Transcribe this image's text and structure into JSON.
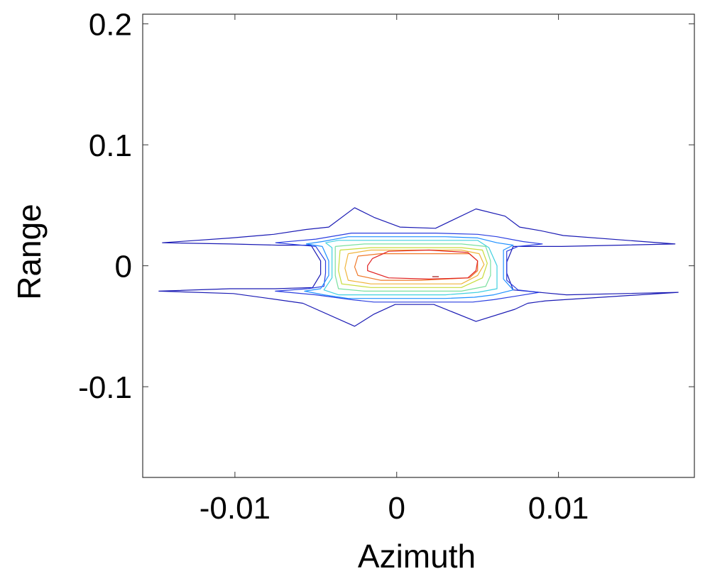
{
  "chart_data": {
    "type": "contour",
    "title": "",
    "xlabel": "Azimuth",
    "ylabel": "Range",
    "xlim": [
      -0.0157,
      0.0184
    ],
    "ylim": [
      -0.175,
      0.208
    ],
    "xticks": [
      -0.01,
      0,
      0.01
    ],
    "xtick_labels": [
      "-0.01",
      "0",
      "0.01"
    ],
    "yticks": [
      -0.1,
      0,
      0.1,
      0.2
    ],
    "ytick_labels": [
      "-0.1",
      "0",
      "0.1",
      "0.2"
    ],
    "grid": false,
    "box": true,
    "contours": [
      {
        "level": 1,
        "color": "#1a1ab4",
        "points": [
          [
            -0.0145,
            0.019
          ],
          [
            -0.0102,
            0.023
          ],
          [
            -0.0076,
            0.026
          ],
          [
            -0.0056,
            0.03
          ],
          [
            -0.0042,
            0.032
          ],
          [
            -0.0026,
            0.048
          ],
          [
            -0.0014,
            0.04
          ],
          [
            0.0002,
            0.032
          ],
          [
            0.0024,
            0.031
          ],
          [
            0.0049,
            0.047
          ],
          [
            0.0067,
            0.041
          ],
          [
            0.0076,
            0.032
          ],
          [
            0.0089,
            0.029
          ],
          [
            0.0103,
            0.025
          ],
          [
            0.0172,
            0.018
          ],
          [
            0.0102,
            0.016
          ],
          [
            0.0072,
            0.016
          ],
          [
            0.0068,
            0.003
          ],
          [
            0.0068,
            -0.006
          ],
          [
            0.0072,
            -0.02
          ],
          [
            0.0105,
            -0.024
          ],
          [
            0.0174,
            -0.022
          ],
          [
            0.0092,
            -0.029
          ],
          [
            0.0081,
            -0.031
          ],
          [
            0.0073,
            -0.036
          ],
          [
            0.0049,
            -0.046
          ],
          [
            0.0023,
            -0.032
          ],
          [
            -0.0001,
            -0.032
          ],
          [
            -0.0014,
            -0.04
          ],
          [
            -0.0026,
            -0.05
          ],
          [
            -0.0058,
            -0.031
          ],
          [
            -0.0079,
            -0.027
          ],
          [
            -0.0101,
            -0.023
          ],
          [
            -0.0147,
            -0.021
          ],
          [
            -0.0103,
            -0.019
          ],
          [
            -0.0075,
            -0.019
          ],
          [
            -0.0052,
            -0.018
          ],
          [
            -0.0047,
            -0.007
          ],
          [
            -0.0047,
            0.004
          ],
          [
            -0.0053,
            0.017
          ],
          [
            -0.0073,
            0.017
          ],
          [
            -0.0103,
            0.018
          ],
          [
            -0.0145,
            0.019
          ]
        ]
      },
      {
        "level": 2,
        "color": "#2a3ee0",
        "points": [
          [
            -0.0075,
            0.019
          ],
          [
            -0.005,
            0.022
          ],
          [
            -0.0028,
            0.027
          ],
          [
            -0.0014,
            0.027
          ],
          [
            0.0002,
            0.027
          ],
          [
            0.0024,
            0.027
          ],
          [
            0.005,
            0.026
          ],
          [
            0.0062,
            0.024
          ],
          [
            0.0078,
            0.02
          ],
          [
            0.009,
            0.018
          ],
          [
            0.0075,
            0.016
          ],
          [
            0.0068,
            0.012
          ],
          [
            0.0068,
            0.0
          ],
          [
            0.0068,
            -0.012
          ],
          [
            0.0075,
            -0.02
          ],
          [
            0.0088,
            -0.022
          ],
          [
            0.0074,
            -0.025
          ],
          [
            0.006,
            -0.028
          ],
          [
            0.0047,
            -0.03
          ],
          [
            0.0024,
            -0.03
          ],
          [
            0.0002,
            -0.03
          ],
          [
            -0.0014,
            -0.03
          ],
          [
            -0.0028,
            -0.028
          ],
          [
            -0.005,
            -0.024
          ],
          [
            -0.0075,
            -0.021
          ],
          [
            -0.0055,
            -0.019
          ],
          [
            -0.0045,
            -0.017
          ],
          [
            -0.0044,
            -0.006
          ],
          [
            -0.0044,
            0.004
          ],
          [
            -0.005,
            0.016
          ],
          [
            -0.0075,
            0.019
          ]
        ]
      },
      {
        "level": 3,
        "color": "#1e90ff",
        "points": [
          [
            -0.0056,
            0.018
          ],
          [
            -0.0046,
            0.02
          ],
          [
            -0.003,
            0.024
          ],
          [
            -0.001,
            0.024
          ],
          [
            0.001,
            0.024
          ],
          [
            0.003,
            0.024
          ],
          [
            0.005,
            0.023
          ],
          [
            0.0062,
            0.019
          ],
          [
            0.0072,
            0.017
          ],
          [
            0.0066,
            0.013
          ],
          [
            0.0066,
            0.0
          ],
          [
            0.0066,
            -0.011
          ],
          [
            0.0072,
            -0.02
          ],
          [
            0.006,
            -0.024
          ],
          [
            0.0048,
            -0.026
          ],
          [
            0.003,
            -0.027
          ],
          [
            0.001,
            -0.027
          ],
          [
            -0.001,
            -0.027
          ],
          [
            -0.003,
            -0.027
          ],
          [
            -0.0045,
            -0.024
          ],
          [
            -0.0057,
            -0.021
          ],
          [
            -0.0047,
            -0.019
          ],
          [
            -0.0042,
            -0.008
          ],
          [
            -0.0042,
            0.004
          ],
          [
            -0.0046,
            0.016
          ],
          [
            -0.0056,
            0.018
          ]
        ]
      },
      {
        "level": 4,
        "color": "#40d0e0",
        "points": [
          [
            -0.0044,
            0.019
          ],
          [
            -0.0036,
            0.021
          ],
          [
            -0.001,
            0.021
          ],
          [
            0.001,
            0.021
          ],
          [
            0.003,
            0.021
          ],
          [
            0.005,
            0.021
          ],
          [
            0.0057,
            0.015
          ],
          [
            0.0062,
            0.0
          ],
          [
            0.0062,
            -0.01
          ],
          [
            0.0062,
            -0.019
          ],
          [
            0.005,
            -0.022
          ],
          [
            0.003,
            -0.024
          ],
          [
            0.001,
            -0.024
          ],
          [
            -0.001,
            -0.024
          ],
          [
            -0.0036,
            -0.024
          ],
          [
            -0.0045,
            -0.02
          ],
          [
            -0.004,
            -0.01
          ],
          [
            -0.004,
            0.004
          ],
          [
            -0.004,
            0.015
          ],
          [
            -0.0044,
            0.019
          ]
        ]
      },
      {
        "level": 5,
        "color": "#7be0a0",
        "points": [
          [
            -0.0038,
            0.016
          ],
          [
            -0.002,
            0.018
          ],
          [
            0.001,
            0.018
          ],
          [
            0.004,
            0.018
          ],
          [
            0.0055,
            0.016
          ],
          [
            0.0058,
            0.004
          ],
          [
            0.0058,
            -0.008
          ],
          [
            0.0055,
            -0.017
          ],
          [
            0.004,
            -0.021
          ],
          [
            0.001,
            -0.021
          ],
          [
            -0.002,
            -0.021
          ],
          [
            -0.0036,
            -0.019
          ],
          [
            -0.0038,
            -0.008
          ],
          [
            -0.0038,
            0.004
          ],
          [
            -0.0038,
            0.016
          ]
        ]
      },
      {
        "level": 6,
        "color": "#c8dc3c",
        "points": [
          [
            -0.0035,
            0.013
          ],
          [
            -0.0016,
            0.015
          ],
          [
            0.001,
            0.015
          ],
          [
            0.004,
            0.015
          ],
          [
            0.0053,
            0.013
          ],
          [
            0.0056,
            0.002
          ],
          [
            0.0053,
            -0.01
          ],
          [
            0.004,
            -0.018
          ],
          [
            0.001,
            -0.018
          ],
          [
            -0.0016,
            -0.018
          ],
          [
            -0.0034,
            -0.015
          ],
          [
            -0.0036,
            -0.004
          ],
          [
            -0.0035,
            0.013
          ]
        ]
      },
      {
        "level": 7,
        "color": "#f0b43c",
        "points": [
          [
            -0.003,
            0.01
          ],
          [
            -0.0016,
            0.013
          ],
          [
            0.001,
            0.013
          ],
          [
            0.004,
            0.013
          ],
          [
            0.0051,
            0.01
          ],
          [
            0.0054,
            0.001
          ],
          [
            0.005,
            -0.008
          ],
          [
            0.004,
            -0.015
          ],
          [
            0.001,
            -0.015
          ],
          [
            -0.0016,
            -0.015
          ],
          [
            -0.003,
            -0.012
          ],
          [
            -0.0032,
            -0.002
          ],
          [
            -0.003,
            0.01
          ]
        ]
      },
      {
        "level": 8,
        "color": "#f07828",
        "points": [
          [
            -0.0024,
            0.008
          ],
          [
            -0.001,
            0.01
          ],
          [
            0.0015,
            0.01
          ],
          [
            0.0045,
            0.01
          ],
          [
            0.005,
            0.004
          ],
          [
            0.005,
            -0.004
          ],
          [
            0.0045,
            -0.01
          ],
          [
            0.0015,
            -0.012
          ],
          [
            -0.001,
            -0.012
          ],
          [
            -0.0024,
            -0.008
          ],
          [
            -0.0026,
            -0.001
          ],
          [
            -0.0024,
            0.008
          ]
        ]
      },
      {
        "level": 9,
        "color": "#e02020",
        "points": [
          [
            -0.0015,
            0.006
          ],
          [
            -0.0005,
            0.012
          ],
          [
            0.002,
            0.013
          ],
          [
            0.0044,
            0.011
          ],
          [
            0.005,
            0.004
          ],
          [
            0.0049,
            -0.004
          ],
          [
            0.0044,
            -0.01
          ],
          [
            0.002,
            -0.011
          ],
          [
            -0.0005,
            -0.01
          ],
          [
            -0.0018,
            -0.004
          ],
          [
            -0.0018,
            0.0
          ],
          [
            -0.0015,
            0.006
          ]
        ]
      },
      {
        "level": 10,
        "color": "#a01010",
        "points": [
          [
            0.0022,
            -0.009
          ],
          [
            0.0026,
            -0.009
          ]
        ]
      }
    ]
  }
}
